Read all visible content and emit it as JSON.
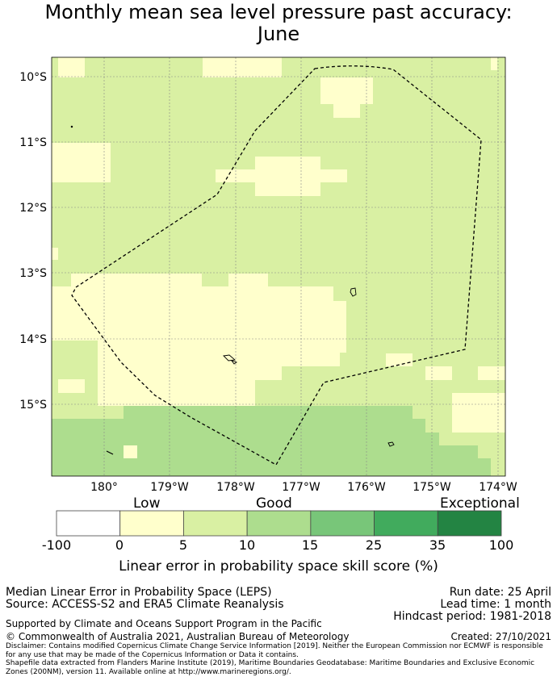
{
  "title_line1": "Monthly mean sea level pressure past accuracy:",
  "title_line2": "June",
  "map": {
    "lat_labels": [
      "10°S",
      "11°S",
      "12°S",
      "13°S",
      "14°S",
      "15°S"
    ],
    "lon_labels": [
      "180°",
      "179°W",
      "178°W",
      "177°W",
      "176°W",
      "175°W",
      "174°W"
    ]
  },
  "colorbar": {
    "categories": [
      "Low",
      "Good",
      "Exceptional"
    ],
    "ticks": [
      "-100",
      "0",
      "5",
      "10",
      "15",
      "25",
      "35",
      "100"
    ],
    "colors": [
      "#ffffff",
      "#ffffcc",
      "#d9f0a3",
      "#addd8e",
      "#78c679",
      "#41ab5d",
      "#238443"
    ],
    "label": "Linear error in probability space skill score (%)"
  },
  "footer": {
    "left1": "Median Linear Error in Probability Space (LEPS)",
    "left2": "Source: ACCESS-S2 and ERA5 Climate Reanalysis",
    "run_date": "Run date: 25 April",
    "lead_time": "Lead time: 1 month",
    "hindcast": "Hindcast period: 1981-2018",
    "support": "Supported by Climate and Oceans Support Program in the Pacific",
    "copyright": "© Commonwealth of Australia 2021, Australian Bureau of Meteorology",
    "created": "Created: 27/10/2021",
    "disclaimer": "Disclaimer: Contains modified Copernicus Climate Change Service Information [2019]. Neither the European Commission nor ECMWF is responsible for any use that may be made of the Copernicus Information or Data it contains.",
    "shapefile": "Shapefile data extracted from Flanders Marine Institute (2019), Maritime Boundaries Geodatabase: Maritime Boundaries and Exclusive Economic Zones (200NM), version 11. Available online at http://www.marineregions.org/."
  }
}
